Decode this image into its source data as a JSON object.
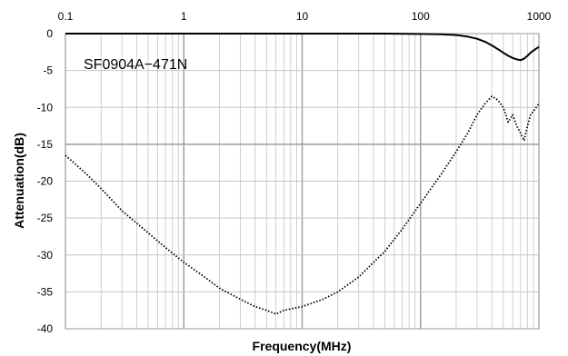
{
  "chart_data": {
    "type": "line",
    "title": "",
    "xlabel": "Frequency(MHz)",
    "ylabel": "Attenuation(dB)",
    "x_scale": "log",
    "xlim": [
      0.1,
      1000
    ],
    "ylim": [
      -40,
      0
    ],
    "x_tick_labels": [
      "0.1",
      "1",
      "10",
      "100",
      "1000"
    ],
    "y_tick_labels": [
      "0",
      "-5",
      "-10",
      "-15",
      "-20",
      "-25",
      "-30",
      "-35",
      "-40"
    ],
    "grid": true,
    "annotation": "SF0904A−471N",
    "series": [
      {
        "style": "solid",
        "color": "#000000",
        "x": [
          0.1,
          1,
          10,
          50,
          100,
          150,
          200,
          250,
          300,
          350,
          400,
          450,
          500,
          550,
          600,
          650,
          700,
          750,
          800,
          850,
          900,
          1000
        ],
        "y": [
          0,
          0,
          0,
          0,
          -0.05,
          -0.1,
          -0.2,
          -0.4,
          -0.7,
          -1.1,
          -1.6,
          -2.1,
          -2.6,
          -3.0,
          -3.3,
          -3.5,
          -3.6,
          -3.4,
          -3.0,
          -2.6,
          -2.3,
          -1.8
        ]
      },
      {
        "style": "dotted",
        "color": "#000000",
        "x": [
          0.1,
          0.15,
          0.2,
          0.3,
          0.5,
          0.7,
          1,
          1.5,
          2,
          3,
          4,
          5,
          6,
          7,
          8,
          10,
          15,
          20,
          30,
          50,
          70,
          100,
          150,
          200,
          250,
          300,
          350,
          400,
          450,
          500,
          550,
          600,
          650,
          700,
          750,
          800,
          850,
          900,
          950,
          1000
        ],
        "y": [
          -16.5,
          -19,
          -21,
          -24,
          -27,
          -29,
          -31,
          -33,
          -34.5,
          -36,
          -37,
          -37.5,
          -38,
          -37.5,
          -37.3,
          -37,
          -36,
          -35,
          -33,
          -29.5,
          -26.5,
          -23,
          -19,
          -16,
          -13.5,
          -11,
          -9.5,
          -8.5,
          -9,
          -10,
          -12,
          -11,
          -12.5,
          -13.5,
          -14.5,
          -12.5,
          -11,
          -10.5,
          -10,
          -9.5
        ]
      }
    ]
  }
}
